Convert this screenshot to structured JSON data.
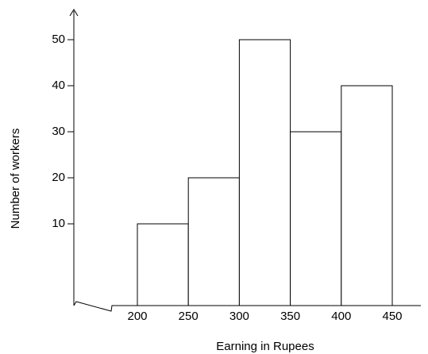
{
  "chart_data": {
    "type": "histogram",
    "x_label": "Earning in Rupees",
    "y_label": "Number of workers",
    "bins": [
      200,
      250,
      300,
      350,
      400,
      450
    ],
    "values": [
      10,
      20,
      50,
      30,
      40
    ],
    "color": "#ffffff",
    "xlim": [
      200,
      450
    ],
    "xticks": [
      200,
      250,
      300,
      350,
      400,
      450
    ],
    "ylim": [
      0,
      55
    ],
    "yticks": [
      10,
      20,
      30,
      40,
      50
    ],
    "grid": false
  }
}
